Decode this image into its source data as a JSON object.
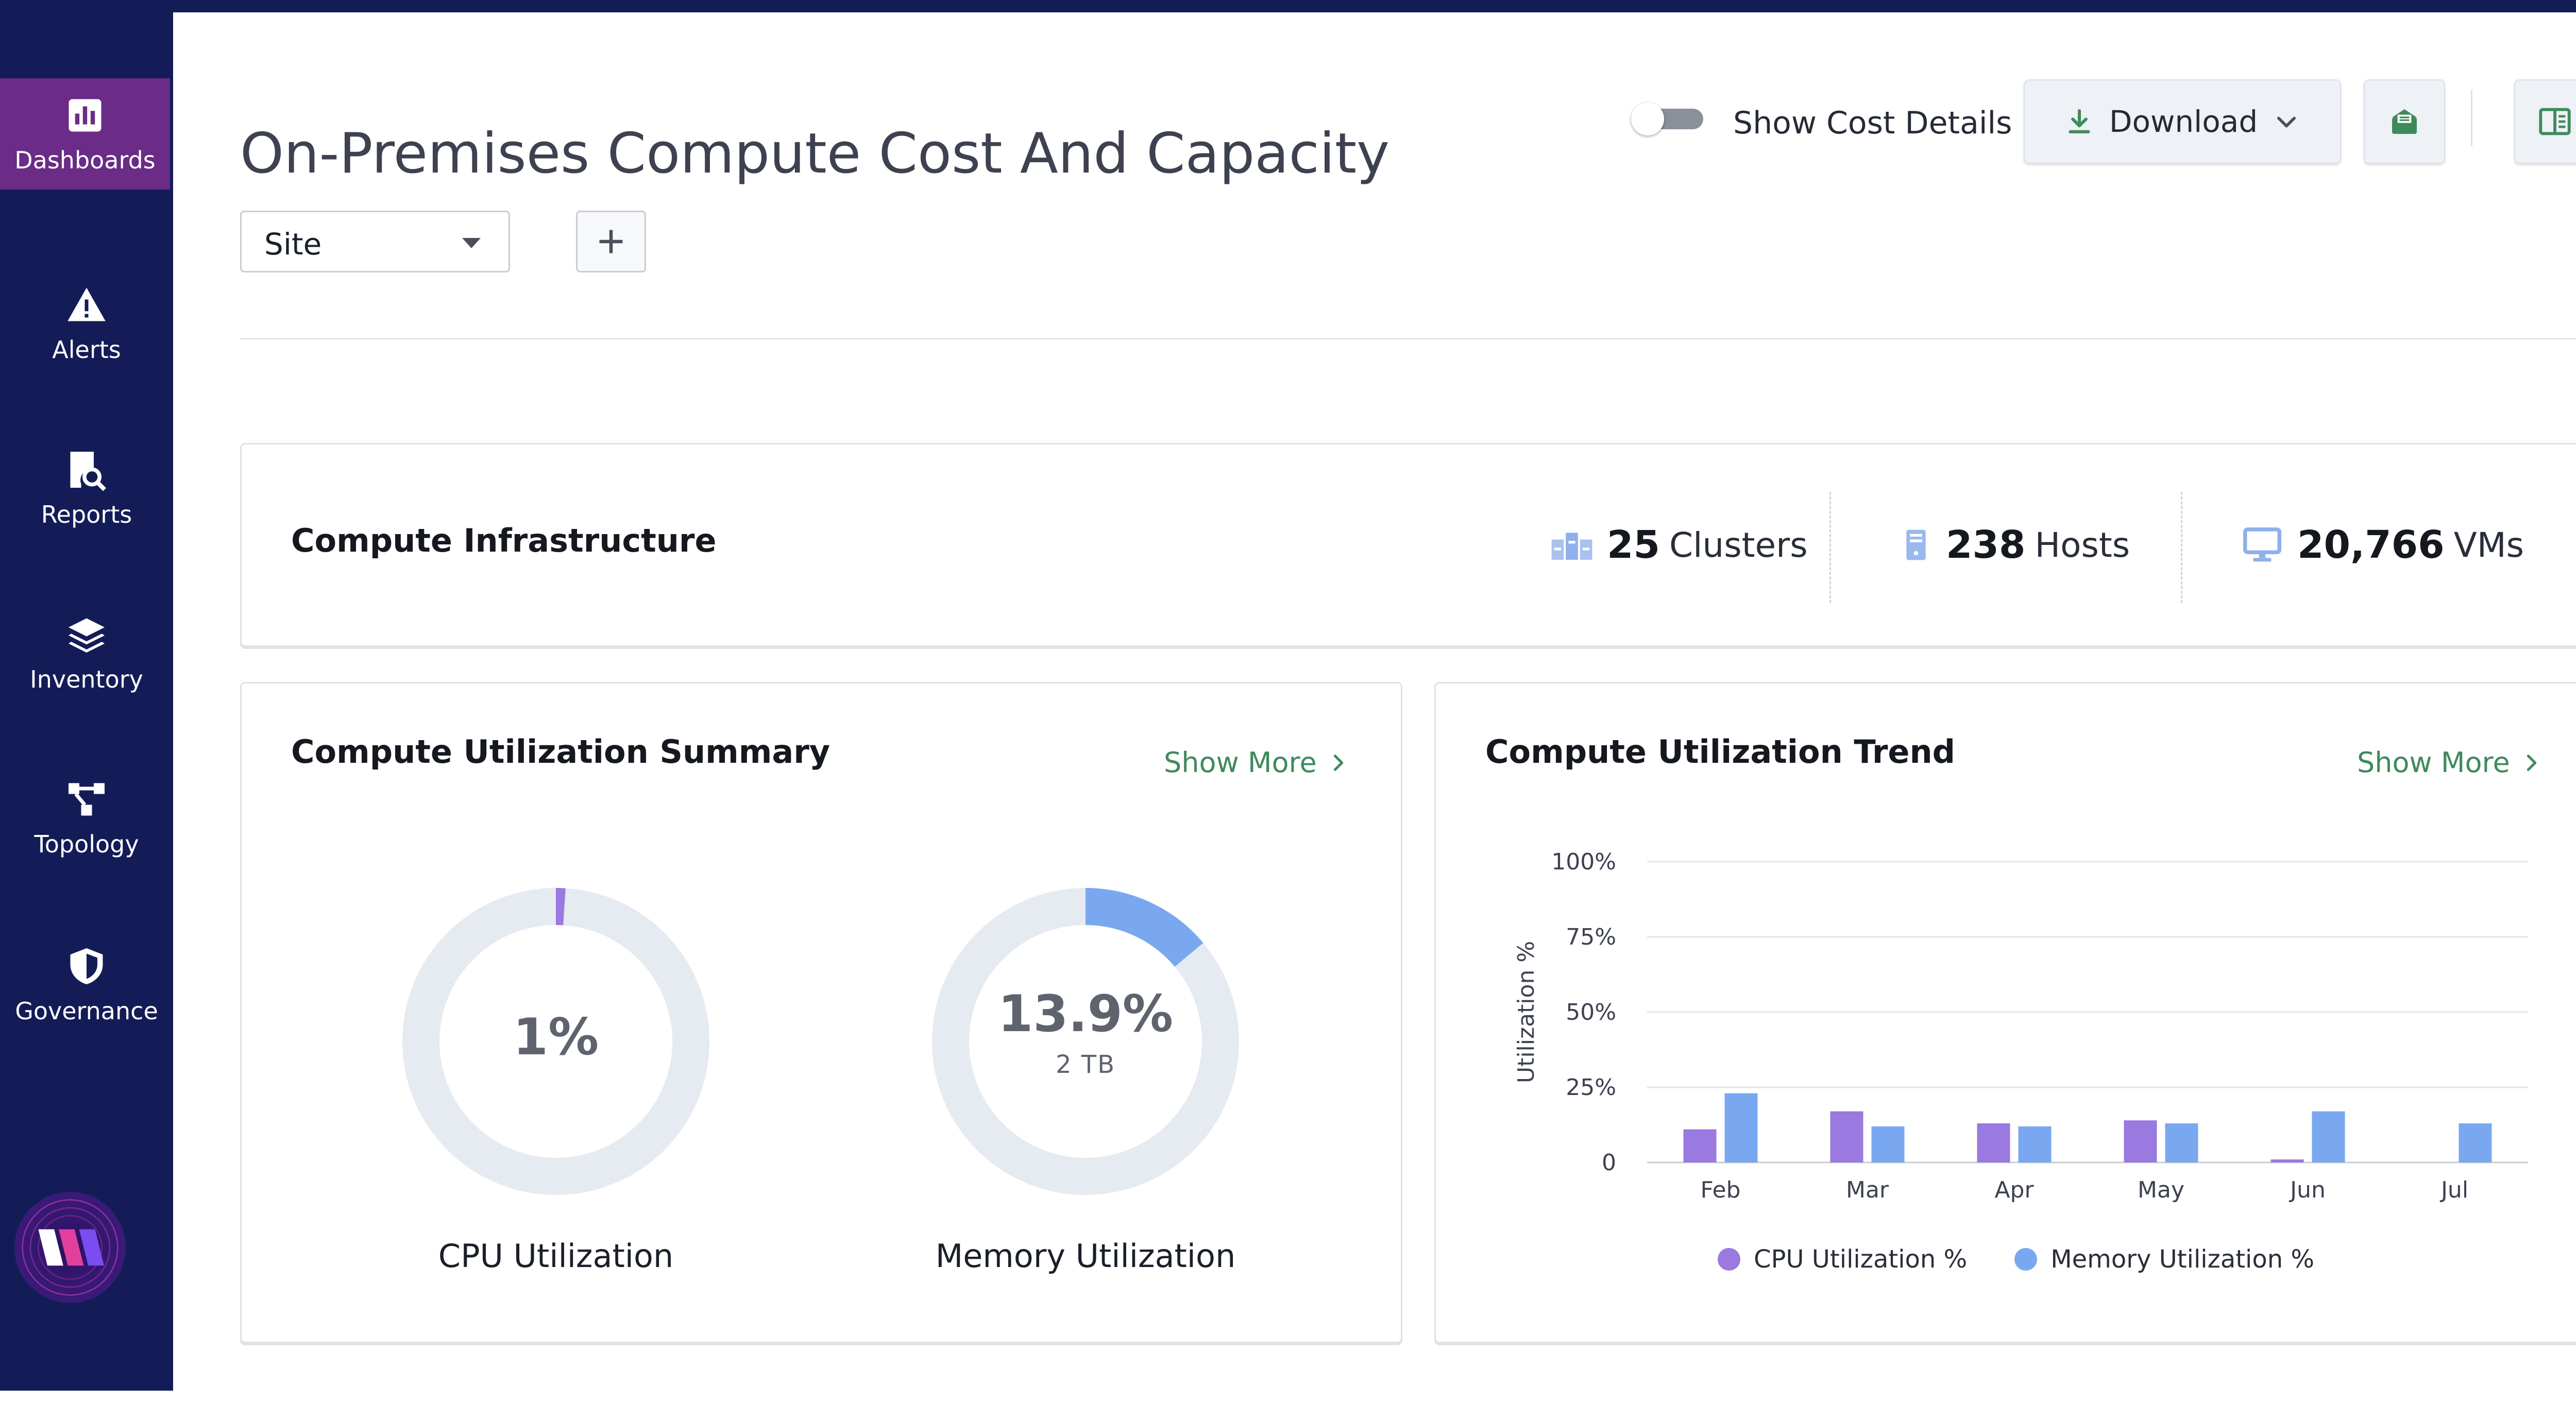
{
  "sidebar": {
    "items": [
      {
        "label": "Dashboards",
        "icon": "bar-chart-icon",
        "active": true
      },
      {
        "label": "Alerts",
        "icon": "warning-icon"
      },
      {
        "label": "Reports",
        "icon": "report-search-icon"
      },
      {
        "label": "Inventory",
        "icon": "layers-icon"
      },
      {
        "label": "Topology",
        "icon": "topology-icon"
      },
      {
        "label": "Governance",
        "icon": "shield-icon"
      }
    ]
  },
  "header": {
    "title": "On-Premises Compute Cost And Capacity",
    "toggle_label": "Show Cost Details",
    "toggle_on": false,
    "download_label": "Download"
  },
  "filters": {
    "site_value": "Site"
  },
  "infrastructure": {
    "title": "Compute Infrastructure",
    "clusters": {
      "value": "25",
      "unit": "Clusters"
    },
    "hosts": {
      "value": "238",
      "unit": "Hosts"
    },
    "vms": {
      "value": "20,766",
      "unit": "VMs"
    }
  },
  "summary": {
    "title": "Compute Utilization Summary",
    "show_more": "Show More",
    "cpu": {
      "display": "1%",
      "value": 1,
      "label": "CPU Utilization"
    },
    "memory": {
      "display": "13.9%",
      "value": 13.9,
      "sub": "2 TB",
      "label": "Memory Utilization"
    }
  },
  "trend": {
    "title": "Compute Utilization Trend",
    "show_more": "Show More"
  },
  "colors": {
    "cpu": "#9a79e0",
    "memory": "#7aa8f0",
    "track": "#e6eaf1",
    "accent_green": "#3f8a5c",
    "sidebar": "#141c57",
    "active": "#6a2c86"
  },
  "chart_data": {
    "type": "bar",
    "title": "Compute Utilization Trend",
    "categories": [
      "Feb",
      "Mar",
      "Apr",
      "May",
      "Jun",
      "Jul"
    ],
    "series": [
      {
        "name": "CPU Utilization %",
        "values": [
          11,
          17,
          13,
          14,
          1,
          0
        ]
      },
      {
        "name": "Memory Utilization %",
        "values": [
          23,
          12,
          12,
          13,
          17,
          13
        ]
      }
    ],
    "ylabel": "Utilization %",
    "yticks": [
      "100%",
      "75%",
      "50%",
      "25%",
      "0"
    ],
    "ytick_values": [
      100,
      75,
      50,
      25,
      0
    ],
    "ylim": [
      0,
      100
    ],
    "grid": true,
    "legend": "bottom"
  }
}
